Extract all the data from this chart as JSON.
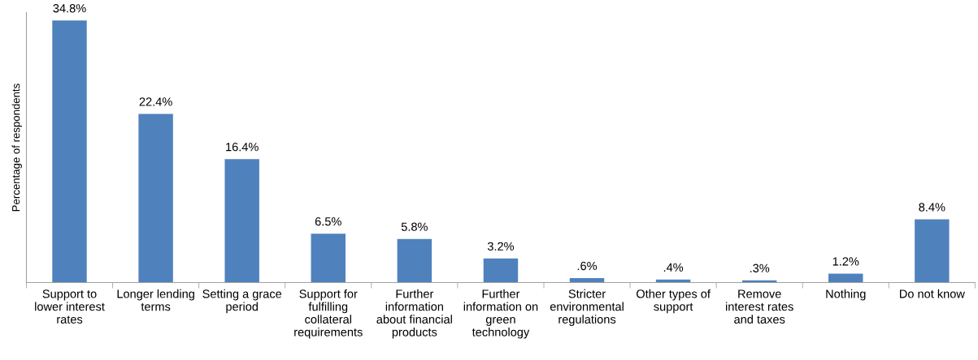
{
  "chart_data": {
    "type": "bar",
    "ylabel": "Percentage of respondents",
    "categories": [
      "Support to\nlower interest\nrates",
      "Longer lending\nterms",
      "Setting a grace\nperiod",
      "Support for\nfulfilling\ncollateral\nrequirements",
      "Further\ninformation\nabout financial\nproducts",
      "Further\ninformation on\ngreen\ntechnology",
      "Stricter\nenvironmental\nregulations",
      "Other types of\nsupport",
      "Remove\ninterest rates\nand taxes",
      "Nothing",
      "Do not know"
    ],
    "values": [
      34.8,
      22.4,
      16.4,
      6.5,
      5.8,
      3.2,
      0.6,
      0.4,
      0.3,
      1.2,
      8.4
    ],
    "value_labels": [
      "34.8%",
      "22.4%",
      "16.4%",
      "6.5%",
      "5.8%",
      "3.2%",
      ".6%",
      ".4%",
      ".3%",
      "1.2%",
      "8.4%"
    ],
    "color": "#4f81bd",
    "grid": false,
    "legend": false
  }
}
